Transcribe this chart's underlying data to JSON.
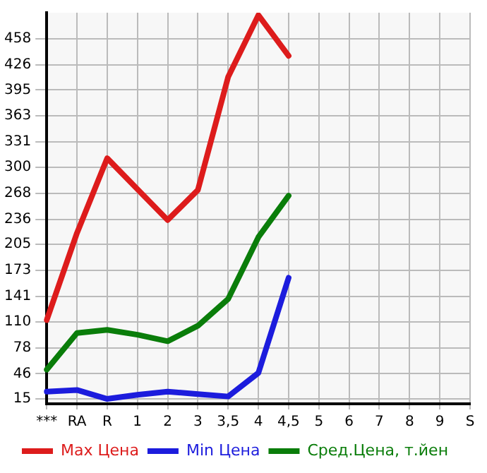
{
  "chart_data": {
    "type": "line",
    "categories": [
      "***",
      "RA",
      "R",
      "1",
      "2",
      "3",
      "3,5",
      "4",
      "4,5",
      "5",
      "6",
      "7",
      "8",
      "9",
      "S"
    ],
    "series": [
      {
        "name": "Max Цена",
        "color": "#dd1c1c",
        "values": [
          112,
          219,
          311,
          273,
          235,
          272,
          411,
          487,
          437,
          null,
          null,
          null,
          null,
          null,
          null
        ]
      },
      {
        "name": "Min Цена",
        "color": "#1c1cdd",
        "values": [
          24,
          26,
          15,
          20,
          24,
          21,
          18,
          47,
          164,
          null,
          null,
          null,
          null,
          null,
          null
        ]
      },
      {
        "name": "Сред.Цена, т.йен",
        "color": "#0a7d0a",
        "values": [
          51,
          96,
          100,
          94,
          86,
          105,
          138,
          214,
          265,
          null,
          null,
          null,
          null,
          null,
          null
        ]
      }
    ],
    "ylim": [
      9,
      490
    ],
    "yticks": [
      15,
      46,
      78,
      110,
      141,
      173,
      205,
      236,
      268,
      300,
      331,
      363,
      395,
      426,
      458
    ],
    "grid": true,
    "legend": "bottom",
    "marker": "none",
    "line_style": "solid"
  }
}
